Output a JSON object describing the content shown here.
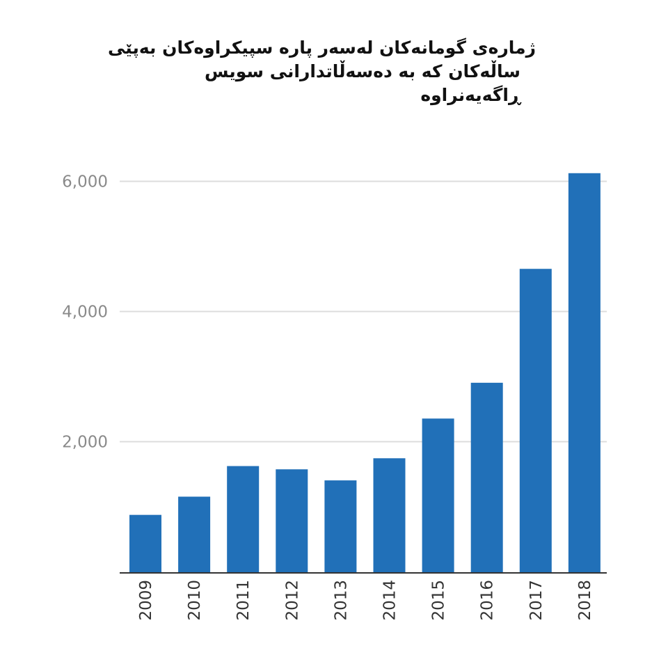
{
  "title": {
    "line1": "ژمارەی گومانەکان لەسەر پارە سپیکراوەکان بەپێی",
    "line2": "ساڵەکان کە بە دەسەڵاتدارانی سویس ڕاگەیەنراوە"
  },
  "chart_data": {
    "type": "bar",
    "title": "ژمارەی گومانەکان لەسەر پارە سپیکراوەکان بەپێی ساڵەکان کە بە دەسەڵاتدارانی سویس ڕاگەیەنراوە",
    "categories": [
      "2009",
      "2010",
      "2011",
      "2012",
      "2013",
      "2014",
      "2015",
      "2016",
      "2017",
      "2018"
    ],
    "values": [
      870,
      1150,
      1620,
      1570,
      1400,
      1740,
      2350,
      2900,
      4650,
      6120
    ],
    "yticks": [
      2000,
      4000,
      6000
    ],
    "ytick_labels": [
      "2,000",
      "4,000",
      "6,000"
    ],
    "ylim": [
      0,
      6150
    ],
    "xlabel": "",
    "ylabel": "",
    "grid": true,
    "legend": "none",
    "bar_color": "#2170b8",
    "grid_color": "#dcdcdc",
    "axis_color": "#333333"
  }
}
